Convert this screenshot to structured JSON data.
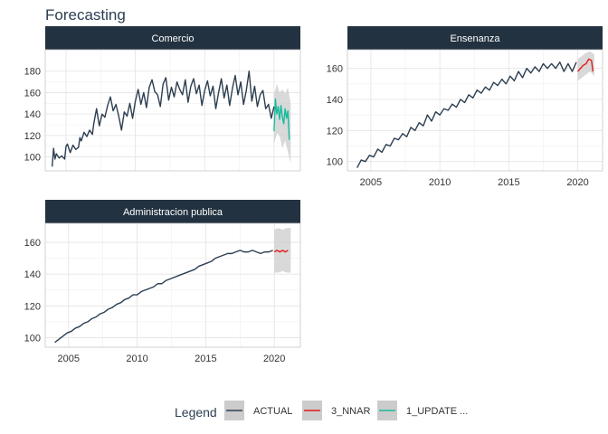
{
  "title": "Forecasting",
  "colors": {
    "strip": "#233241",
    "actual": "#2c3e50",
    "nnar": "#e31a1c",
    "update": "#18bc9c",
    "band": "#cccccc",
    "grid": "#e3e3e3",
    "panel_border": "#c8c8c8"
  },
  "legend": {
    "title": "Legend",
    "placement": "bottom",
    "items": [
      {
        "label": "ACTUAL",
        "color": "#2c3e50"
      },
      {
        "label": "3_NNAR",
        "color": "#e31a1c"
      },
      {
        "label": "1_UPDATE ...",
        "color": "#18bc9c"
      }
    ]
  },
  "chart_data": [
    {
      "type": "line",
      "facet": "Comercio",
      "xlim": [
        2003.5,
        2021.9
      ],
      "ylim": [
        87,
        200
      ],
      "x_ticks": [
        2005,
        2010,
        2015,
        2020
      ],
      "y_ticks": [
        100,
        120,
        140,
        160,
        180
      ],
      "show_x_tick_labels": false,
      "grid": true,
      "series": [
        {
          "name": "ACTUAL",
          "color": "#2c3e50",
          "x": [
            2004.0,
            2004.1,
            2004.2,
            2004.3,
            2004.5,
            2004.7,
            2004.9,
            2005.0,
            2005.1,
            2005.3,
            2005.5,
            2005.7,
            2005.9,
            2006.0,
            2006.1,
            2006.3,
            2006.5,
            2006.7,
            2006.9,
            2007.0,
            2007.2,
            2007.4,
            2007.6,
            2007.8,
            2008.0,
            2008.2,
            2008.4,
            2008.6,
            2008.8,
            2009.0,
            2009.2,
            2009.4,
            2009.6,
            2009.8,
            2010.0,
            2010.2,
            2010.4,
            2010.6,
            2010.8,
            2011.0,
            2011.2,
            2011.4,
            2011.6,
            2011.8,
            2012.0,
            2012.2,
            2012.4,
            2012.6,
            2012.8,
            2013.0,
            2013.2,
            2013.4,
            2013.6,
            2013.8,
            2014.0,
            2014.2,
            2014.4,
            2014.6,
            2014.8,
            2015.0,
            2015.2,
            2015.4,
            2015.6,
            2015.8,
            2016.0,
            2016.2,
            2016.4,
            2016.6,
            2016.8,
            2017.0,
            2017.2,
            2017.4,
            2017.6,
            2017.8,
            2018.0,
            2018.2,
            2018.4,
            2018.6,
            2018.8,
            2019.0,
            2019.2,
            2019.4,
            2019.6,
            2019.8,
            2020.0
          ],
          "y": [
            91,
            108,
            98,
            103,
            99,
            101,
            98,
            110,
            112,
            104,
            111,
            107,
            109,
            118,
            115,
            123,
            119,
            125,
            121,
            131,
            145,
            129,
            140,
            137,
            148,
            156,
            143,
            149,
            138,
            125,
            142,
            138,
            150,
            136,
            152,
            163,
            149,
            160,
            146,
            165,
            172,
            161,
            158,
            147,
            168,
            174,
            153,
            165,
            156,
            170,
            163,
            158,
            172,
            151,
            166,
            173,
            159,
            167,
            148,
            162,
            171,
            157,
            166,
            145,
            160,
            173,
            155,
            167,
            148,
            164,
            176,
            158,
            170,
            149,
            162,
            180,
            152,
            166,
            147,
            158,
            162,
            145,
            149,
            136,
            147
          ]
        },
        {
          "name": "1_UPDATE ...",
          "color": "#18bc9c",
          "x": [
            2020.0,
            2020.1,
            2020.2,
            2020.3,
            2020.4,
            2020.5,
            2020.6,
            2020.7,
            2020.8,
            2020.9,
            2021.0,
            2021.1
          ],
          "y": [
            124,
            154,
            140,
            147,
            135,
            148,
            137,
            131,
            145,
            136,
            143,
            116
          ]
        }
      ],
      "band": {
        "x": [
          2020.0,
          2020.2,
          2020.4,
          2020.6,
          2020.8,
          2021.0,
          2021.2
        ],
        "lower": [
          112,
          122,
          120,
          108,
          115,
          105,
          94
        ],
        "upper": [
          158,
          168,
          160,
          163,
          159,
          165,
          150
        ]
      }
    },
    {
      "type": "line",
      "facet": "Ensenanza",
      "xlim": [
        2003.3,
        2021.8
      ],
      "ylim": [
        94,
        172
      ],
      "x_ticks": [
        2005,
        2010,
        2015,
        2020
      ],
      "y_ticks": [
        100,
        120,
        140,
        160
      ],
      "show_x_tick_labels": true,
      "grid": true,
      "series": [
        {
          "name": "ACTUAL",
          "color": "#2c3e50",
          "x": [
            2004.0,
            2004.3,
            2004.6,
            2004.9,
            2005.2,
            2005.5,
            2005.8,
            2006.1,
            2006.4,
            2006.7,
            2007.0,
            2007.3,
            2007.6,
            2007.9,
            2008.2,
            2008.5,
            2008.8,
            2009.1,
            2009.4,
            2009.7,
            2010.0,
            2010.3,
            2010.6,
            2010.9,
            2011.2,
            2011.5,
            2011.8,
            2012.1,
            2012.4,
            2012.7,
            2013.0,
            2013.3,
            2013.6,
            2013.9,
            2014.2,
            2014.5,
            2014.8,
            2015.1,
            2015.4,
            2015.7,
            2016.0,
            2016.3,
            2016.6,
            2016.9,
            2017.2,
            2017.5,
            2017.8,
            2018.1,
            2018.4,
            2018.7,
            2019.0,
            2019.3,
            2019.6,
            2019.9
          ],
          "y": [
            96,
            101,
            100,
            104,
            103,
            108,
            106,
            111,
            110,
            115,
            114,
            118,
            116,
            122,
            120,
            125,
            123,
            130,
            126,
            132,
            130,
            134,
            133,
            137,
            135,
            140,
            138,
            143,
            141,
            146,
            144,
            148,
            146,
            151,
            149,
            153,
            150,
            155,
            152,
            158,
            154,
            160,
            157,
            161,
            158,
            163,
            160,
            163,
            160,
            164,
            158,
            163,
            158,
            164
          ]
        },
        {
          "name": "3_NNAR",
          "color": "#e31a1c",
          "x": [
            2020.0,
            2020.2,
            2020.4,
            2020.6,
            2020.8,
            2021.0,
            2021.1
          ],
          "y": [
            158,
            160,
            162,
            163,
            166,
            165,
            158
          ]
        }
      ],
      "band": {
        "x": [
          2020.0,
          2020.3,
          2020.6,
          2020.9,
          2021.2
        ],
        "lower": [
          152,
          154,
          156,
          158,
          155
        ],
        "upper": [
          166,
          168,
          170,
          171,
          169
        ]
      }
    },
    {
      "type": "line",
      "facet": "Administracion publica",
      "xlim": [
        2003.3,
        2021.9
      ],
      "ylim": [
        94,
        172
      ],
      "x_ticks": [
        2005,
        2010,
        2015,
        2020
      ],
      "y_ticks": [
        100,
        120,
        140,
        160
      ],
      "show_x_tick_labels": true,
      "grid": true,
      "series": [
        {
          "name": "ACTUAL",
          "color": "#2c3e50",
          "x": [
            2004.0,
            2004.3,
            2004.6,
            2004.9,
            2005.2,
            2005.5,
            2005.8,
            2006.1,
            2006.4,
            2006.7,
            2007.0,
            2007.3,
            2007.6,
            2007.9,
            2008.2,
            2008.5,
            2008.8,
            2009.1,
            2009.4,
            2009.7,
            2010.0,
            2010.3,
            2010.6,
            2010.9,
            2011.2,
            2011.5,
            2011.8,
            2012.1,
            2012.4,
            2012.7,
            2013.0,
            2013.3,
            2013.6,
            2013.9,
            2014.2,
            2014.5,
            2014.8,
            2015.1,
            2015.4,
            2015.7,
            2016.0,
            2016.3,
            2016.6,
            2016.9,
            2017.2,
            2017.5,
            2017.8,
            2018.1,
            2018.4,
            2018.7,
            2019.0,
            2019.3,
            2019.6,
            2019.9
          ],
          "y": [
            97,
            99,
            101,
            103,
            104,
            106,
            107,
            109,
            110,
            112,
            113,
            115,
            116,
            118,
            119,
            121,
            122,
            124,
            125,
            127,
            127,
            129,
            130,
            131,
            132,
            134,
            134,
            136,
            137,
            138,
            139,
            140,
            141,
            142,
            143,
            145,
            146,
            147,
            148,
            150,
            151,
            152,
            153,
            153,
            154,
            155,
            154,
            154,
            155,
            154,
            153,
            154,
            154,
            155
          ]
        },
        {
          "name": "3_NNAR",
          "color": "#e31a1c",
          "x": [
            2020.0,
            2020.2,
            2020.4,
            2020.6,
            2020.8,
            2021.0
          ],
          "y": [
            154,
            155,
            154,
            155,
            154,
            155
          ]
        }
      ],
      "band": {
        "x": [
          2020.0,
          2020.3,
          2020.6,
          2020.9,
          2021.2
        ],
        "lower": [
          141,
          141,
          142,
          141,
          141
        ],
        "upper": [
          168,
          169,
          168,
          169,
          169
        ]
      }
    }
  ]
}
